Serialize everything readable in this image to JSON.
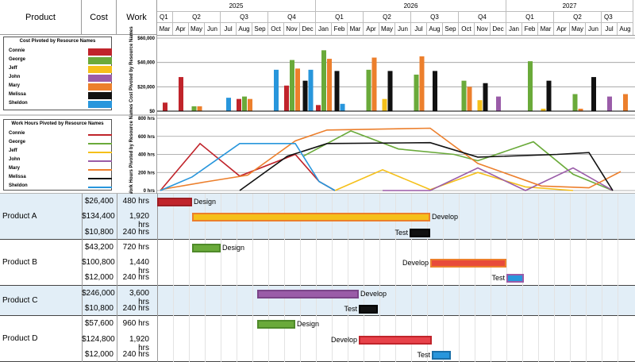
{
  "header": {
    "product": "Product",
    "cost": "Cost",
    "work": "Work"
  },
  "years": [
    "2025",
    "2026",
    "2027"
  ],
  "quarters": [
    "Q1",
    "Q2",
    "Q3",
    "Q4",
    "Q1",
    "Q2",
    "Q3",
    "Q4",
    "Q1",
    "Q2",
    "Q3"
  ],
  "months": [
    "Mar",
    "Apr",
    "May",
    "Jun",
    "Jul",
    "Aug",
    "Sep",
    "Oct",
    "Nov",
    "Dec",
    "Jan",
    "Feb",
    "Mar",
    "Apr",
    "May",
    "Jun",
    "Jul",
    "Aug",
    "Sep",
    "Oct",
    "Nov",
    "Dec",
    "Jan",
    "Feb",
    "Mar",
    "Apr",
    "May",
    "Jun",
    "Jul",
    "Aug"
  ],
  "resources": [
    {
      "name": "Connie",
      "color": "#c0242b"
    },
    {
      "name": "George",
      "color": "#6aaa3a"
    },
    {
      "name": "Jeff",
      "color": "#f5c01a"
    },
    {
      "name": "John",
      "color": "#9a5ca8"
    },
    {
      "name": "Mary",
      "color": "#ec7f2c"
    },
    {
      "name": "Melissa",
      "color": "#111111"
    },
    {
      "name": "Sheldon",
      "color": "#2896dc"
    }
  ],
  "cost_legend_title": "Cost Pivoted by Resource Names",
  "hours_legend_title": "Work Hours Pivoted by Resource Names",
  "cost_chart": {
    "ylabel": "Cost Pivoted by Resource Names",
    "yticks": [
      "$60,000",
      "$40,000",
      "$20,000",
      "$0"
    ],
    "ylim": [
      0,
      60000
    ],
    "bars": [
      {
        "m": 0,
        "r": "Connie",
        "v": 7000
      },
      {
        "m": 1,
        "r": "Connie",
        "v": 28000
      },
      {
        "m": 2,
        "r": "George",
        "v": 4000
      },
      {
        "m": 2,
        "r": "Mary",
        "v": 4000
      },
      {
        "m": 4,
        "r": "Sheldon",
        "v": 11000
      },
      {
        "m": 5,
        "r": "Connie",
        "v": 10000
      },
      {
        "m": 5,
        "r": "George",
        "v": 12000
      },
      {
        "m": 5,
        "r": "Mary",
        "v": 10000
      },
      {
        "m": 7,
        "r": "Sheldon",
        "v": 34000
      },
      {
        "m": 8,
        "r": "Connie",
        "v": 21000
      },
      {
        "m": 8,
        "r": "George",
        "v": 42000
      },
      {
        "m": 8,
        "r": "Mary",
        "v": 35000
      },
      {
        "m": 9,
        "r": "Melissa",
        "v": 25000
      },
      {
        "m": 9,
        "r": "Sheldon",
        "v": 34000
      },
      {
        "m": 10,
        "r": "Connie",
        "v": 5000
      },
      {
        "m": 10,
        "r": "George",
        "v": 50000
      },
      {
        "m": 10,
        "r": "Mary",
        "v": 43000
      },
      {
        "m": 11,
        "r": "Melissa",
        "v": 33000
      },
      {
        "m": 11,
        "r": "Sheldon",
        "v": 6000
      },
      {
        "m": 13,
        "r": "George",
        "v": 34000
      },
      {
        "m": 13,
        "r": "Mary",
        "v": 44000
      },
      {
        "m": 14,
        "r": "Jeff",
        "v": 10000
      },
      {
        "m": 14,
        "r": "Melissa",
        "v": 33000
      },
      {
        "m": 16,
        "r": "George",
        "v": 30000
      },
      {
        "m": 16,
        "r": "Mary",
        "v": 45000
      },
      {
        "m": 17,
        "r": "Melissa",
        "v": 33000
      },
      {
        "m": 19,
        "r": "George",
        "v": 25000
      },
      {
        "m": 19,
        "r": "Mary",
        "v": 20000
      },
      {
        "m": 20,
        "r": "Jeff",
        "v": 9000
      },
      {
        "m": 20,
        "r": "Melissa",
        "v": 23000
      },
      {
        "m": 21,
        "r": "John",
        "v": 12000
      },
      {
        "m": 23,
        "r": "George",
        "v": 41000
      },
      {
        "m": 24,
        "r": "Jeff",
        "v": 2000
      },
      {
        "m": 24,
        "r": "Melissa",
        "v": 25000
      },
      {
        "m": 26,
        "r": "George",
        "v": 14000
      },
      {
        "m": 26,
        "r": "Mary",
        "v": 2000
      },
      {
        "m": 27,
        "r": "Melissa",
        "v": 28000
      },
      {
        "m": 28,
        "r": "John",
        "v": 12000
      },
      {
        "m": 29,
        "r": "Mary",
        "v": 14000
      }
    ]
  },
  "hours_chart": {
    "ylabel": "Work Hours Pivoted by Resource Names",
    "yticks": [
      "800 hrs",
      "600 hrs",
      "400 hrs",
      "200 hrs",
      "0 hrs"
    ],
    "ylim": [
      0,
      800
    ],
    "series": [
      {
        "r": "Connie",
        "pts": [
          [
            0,
            0
          ],
          [
            2.5,
            520
          ],
          [
            5,
            160
          ],
          [
            8.5,
            400
          ],
          [
            10,
            100
          ],
          [
            11,
            0
          ]
        ]
      },
      {
        "r": "George",
        "pts": [
          [
            9,
            380
          ],
          [
            12,
            660
          ],
          [
            15,
            460
          ],
          [
            18.5,
            400
          ],
          [
            20,
            330
          ],
          [
            23.5,
            540
          ],
          [
            26,
            180
          ],
          [
            28.5,
            0
          ]
        ]
      },
      {
        "r": "Jeff",
        "pts": [
          [
            11,
            0
          ],
          [
            14,
            230
          ],
          [
            17,
            10
          ],
          [
            20,
            200
          ],
          [
            23,
            40
          ],
          [
            26,
            0
          ]
        ]
      },
      {
        "r": "John",
        "pts": [
          [
            14,
            0
          ],
          [
            17,
            0
          ],
          [
            20,
            250
          ],
          [
            23,
            0
          ],
          [
            26,
            250
          ],
          [
            28.5,
            0
          ]
        ]
      },
      {
        "r": "Mary",
        "pts": [
          [
            0,
            10
          ],
          [
            3,
            100
          ],
          [
            5.5,
            170
          ],
          [
            8.5,
            550
          ],
          [
            10.5,
            670
          ],
          [
            17,
            690
          ],
          [
            20,
            300
          ],
          [
            24,
            50
          ],
          [
            27,
            30
          ],
          [
            29,
            210
          ]
        ]
      },
      {
        "r": "Melissa",
        "pts": [
          [
            5,
            0
          ],
          [
            8,
            380
          ],
          [
            10.5,
            520
          ],
          [
            17,
            530
          ],
          [
            20,
            370
          ],
          [
            25,
            400
          ],
          [
            27,
            420
          ],
          [
            28.5,
            0
          ]
        ]
      },
      {
        "r": "Sheldon",
        "pts": [
          [
            0,
            0
          ],
          [
            2,
            150
          ],
          [
            5,
            520
          ],
          [
            8.5,
            520
          ],
          [
            10,
            100
          ],
          [
            11,
            0
          ]
        ]
      }
    ]
  },
  "products": [
    {
      "name": "Product A",
      "rows": [
        {
          "cost": "$26,400",
          "work": "480 hrs",
          "label": "Design",
          "start": 0,
          "end": 2.2,
          "fill": "#c0242b",
          "stroke": "#9c1e24"
        },
        {
          "cost": "$134,400",
          "work": "1,920 hrs",
          "label": "Develop",
          "start": 2.2,
          "end": 17.2,
          "fill": "#f5c01a",
          "stroke": "#ec7f2c"
        },
        {
          "cost": "$10,800",
          "work": "240 hrs",
          "label": "Test",
          "start": 15.9,
          "end": 17.2,
          "fill": "#111111",
          "stroke": "#000000"
        }
      ]
    },
    {
      "name": "Product B",
      "rows": [
        {
          "cost": "$43,200",
          "work": "720 hrs",
          "label": "Design",
          "start": 2.2,
          "end": 4.0,
          "fill": "#6aaa3a",
          "stroke": "#4f8a2a"
        },
        {
          "cost": "$100,800",
          "work": "1,440 hrs",
          "label": "Develop",
          "start": 17.2,
          "end": 22.0,
          "fill": "#e84a3a",
          "stroke": "#ec7f2c"
        },
        {
          "cost": "$12,000",
          "work": "240 hrs",
          "label": "Test",
          "start": 22.0,
          "end": 23.1,
          "fill": "#2896dc",
          "stroke": "#9a5ca8"
        }
      ]
    },
    {
      "name": "Product C",
      "rows": [
        {
          "cost": "$246,000",
          "work": "3,600 hrs",
          "label": "Develop",
          "start": 6.3,
          "end": 12.7,
          "fill": "#9a5ca8",
          "stroke": "#7a4488"
        },
        {
          "cost": "$10,800",
          "work": "240 hrs",
          "label": "Test",
          "start": 12.7,
          "end": 13.9,
          "fill": "#111111",
          "stroke": "#000000"
        }
      ]
    },
    {
      "name": "Product D",
      "rows": [
        {
          "cost": "$57,600",
          "work": "960 hrs",
          "label": "Design",
          "start": 6.3,
          "end": 8.7,
          "fill": "#6aaa3a",
          "stroke": "#4f8a2a"
        },
        {
          "cost": "$124,800",
          "work": "1,920 hrs",
          "label": "Develop",
          "start": 12.7,
          "end": 17.3,
          "fill": "#e8424a",
          "stroke": "#c0242b"
        },
        {
          "cost": "$12,000",
          "work": "240 hrs",
          "label": "Test",
          "start": 17.3,
          "end": 18.5,
          "fill": "#2896dc",
          "stroke": "#1a6fa8"
        }
      ]
    }
  ]
}
